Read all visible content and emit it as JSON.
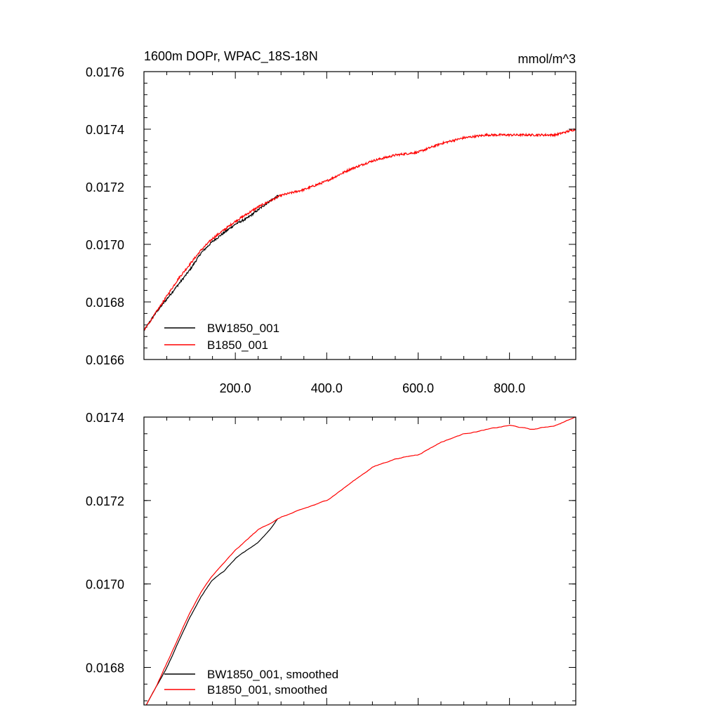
{
  "chart_data": [
    {
      "type": "line",
      "title": "1600m DOPr, WPAC_18S-18N",
      "units": "mmol/m^3",
      "xlim": [
        0,
        945
      ],
      "ylim": [
        0.0166,
        0.0176
      ],
      "xticks": [
        200,
        400,
        600,
        800
      ],
      "xtick_labels": [
        "200.0",
        "400.0",
        "600.0",
        "800.0"
      ],
      "yticks": [
        0.0166,
        0.0168,
        0.017,
        0.0172,
        0.0174,
        0.0176
      ],
      "ytick_labels": [
        "0.0166",
        "0.0168",
        "0.0170",
        "0.0172",
        "0.0174",
        "0.0176"
      ],
      "legend_position": "bottom-left",
      "noisy": true,
      "series": [
        {
          "name": "BW1850_001",
          "color": "#000000",
          "x": [
            0,
            25,
            50,
            75,
            100,
            125,
            150,
            175,
            200,
            225,
            250,
            275,
            295
          ],
          "values": [
            0.0167,
            0.01676,
            0.01681,
            0.01686,
            0.01691,
            0.01697,
            0.01701,
            0.01704,
            0.01707,
            0.01709,
            0.01712,
            0.01715,
            0.01717
          ]
        },
        {
          "name": "B1850_001",
          "color": "#ff0000",
          "x": [
            0,
            25,
            50,
            75,
            100,
            125,
            150,
            175,
            200,
            250,
            300,
            350,
            400,
            450,
            500,
            550,
            600,
            650,
            700,
            750,
            800,
            850,
            900,
            945
          ],
          "values": [
            0.0167,
            0.01676,
            0.01682,
            0.01688,
            0.01693,
            0.01698,
            0.01702,
            0.01705,
            0.01708,
            0.01713,
            0.01717,
            0.01719,
            0.01722,
            0.01726,
            0.01729,
            0.01731,
            0.01732,
            0.01735,
            0.01737,
            0.01738,
            0.01738,
            0.01738,
            0.01738,
            0.0174
          ]
        }
      ]
    },
    {
      "type": "line",
      "xlim": [
        0,
        945
      ],
      "ylim": [
        0.01671,
        0.0174
      ],
      "xticks": [
        200,
        400,
        600,
        800
      ],
      "yticks": [
        0.0168,
        0.017,
        0.0172,
        0.0174
      ],
      "ytick_labels": [
        "0.0168",
        "0.0170",
        "0.0172",
        "0.0174"
      ],
      "legend_position": "bottom-left",
      "noisy": false,
      "series": [
        {
          "name": "BW1850_001, smoothed",
          "color": "#000000",
          "x": [
            5,
            25,
            50,
            75,
            100,
            125,
            150,
            175,
            200,
            225,
            250,
            275,
            295
          ],
          "values": [
            0.01671,
            0.01675,
            0.0168,
            0.01686,
            0.01692,
            0.01697,
            0.01701,
            0.01703,
            0.01706,
            0.01708,
            0.0171,
            0.01713,
            0.01716
          ]
        },
        {
          "name": "B1850_001, smoothed",
          "color": "#ff0000",
          "x": [
            5,
            25,
            50,
            75,
            100,
            125,
            150,
            175,
            200,
            250,
            300,
            350,
            400,
            450,
            500,
            550,
            600,
            650,
            700,
            750,
            800,
            850,
            900,
            945
          ],
          "values": [
            0.01671,
            0.01675,
            0.01681,
            0.01687,
            0.01693,
            0.01698,
            0.01702,
            0.01705,
            0.01708,
            0.01713,
            0.01716,
            0.01718,
            0.0172,
            0.01724,
            0.01728,
            0.0173,
            0.01731,
            0.01734,
            0.01736,
            0.01737,
            0.01738,
            0.01737,
            0.01738,
            0.0174
          ]
        }
      ]
    }
  ]
}
